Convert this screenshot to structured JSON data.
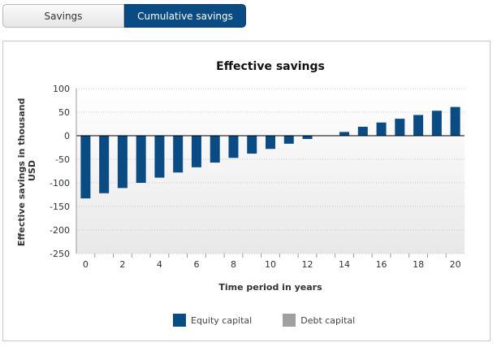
{
  "tabs": [
    {
      "label": "Savings",
      "active": false
    },
    {
      "label": "Cumulative savings",
      "active": true
    }
  ],
  "colors": {
    "equity": "#0a4b83",
    "debt": "#a0a0a0",
    "accent": "#0a4b83"
  },
  "chart_data": {
    "type": "bar",
    "title": "Effective savings",
    "xlabel": "Time period in years",
    "ylabel": "Effective savings in thousand USD",
    "ylim": [
      -250,
      100
    ],
    "yticks": [
      100,
      50,
      0,
      -50,
      -100,
      -150,
      -200,
      -250
    ],
    "categories": [
      0,
      1,
      2,
      3,
      4,
      5,
      6,
      7,
      8,
      9,
      10,
      11,
      12,
      13,
      14,
      15,
      16,
      17,
      18,
      19,
      20
    ],
    "xtick_labels": [
      "0",
      "2",
      "4",
      "6",
      "8",
      "10",
      "12",
      "14",
      "16",
      "18",
      "20"
    ],
    "series": [
      {
        "name": "Equity capital",
        "values": [
          -133,
          -122,
          -111,
          -100,
          -89,
          -78,
          -67,
          -57,
          -47,
          -38,
          -28,
          -17,
          -7,
          0,
          8,
          19,
          28,
          36,
          44,
          53,
          61
        ]
      },
      {
        "name": "Debt capital",
        "values": [
          0,
          0,
          0,
          0,
          0,
          0,
          0,
          0,
          0,
          0,
          0,
          0,
          0,
          0,
          0,
          0,
          0,
          0,
          0,
          0,
          0
        ]
      }
    ],
    "grid": true,
    "legend_position": "bottom"
  }
}
